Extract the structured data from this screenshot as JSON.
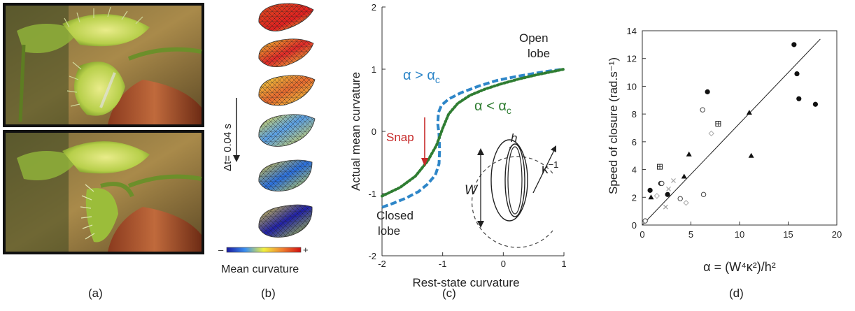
{
  "captions": {
    "a": "(a)",
    "b": "(b)",
    "c": "(c)",
    "d": "(d)"
  },
  "panel_b": {
    "time_step_label": "Δt= 0.04 s",
    "colorbar_label": "Mean curvature",
    "colorbar_min": "–",
    "colorbar_max": "+"
  },
  "panel_c": {
    "open_lobe": [
      "Open",
      "lobe"
    ],
    "closed_lobe": [
      "Closed",
      "lobe"
    ],
    "snap": "Snap",
    "alpha_gt": "α > α",
    "alpha_lt": "α < α",
    "alpha_sub": "c",
    "inset_h": "h",
    "inset_w": "W",
    "inset_kappa": "κ",
    "inset_kappa_sup": "−1",
    "colors": {
      "alpha_gt": "#2e86c8",
      "alpha_lt": "#2f7d32",
      "snap": "#c62828"
    }
  },
  "chart_data": [
    {
      "type": "line",
      "xlabel": "Rest-state curvature",
      "ylabel": "Actual mean curvature",
      "xlim": [
        -2,
        1
      ],
      "ylim": [
        -2,
        2
      ],
      "xticks": [
        -2,
        -1,
        0,
        1
      ],
      "yticks": [
        -2,
        -1,
        0,
        1,
        2
      ],
      "series": [
        {
          "name": "α > αc",
          "style": "dashed",
          "color": "#2e86c8",
          "points": [
            [
              -2,
              -1.22
            ],
            [
              -1.8,
              -1.15
            ],
            [
              -1.6,
              -1.07
            ],
            [
              -1.4,
              -0.97
            ],
            [
              -1.25,
              -0.85
            ],
            [
              -1.12,
              -0.7
            ],
            [
              -1.06,
              -0.52
            ],
            [
              -1.05,
              -0.3
            ],
            [
              -1.06,
              -0.05
            ],
            [
              -1.08,
              0.12
            ],
            [
              -1.07,
              0.3
            ],
            [
              -1.02,
              0.42
            ],
            [
              -0.9,
              0.52
            ],
            [
              -0.7,
              0.62
            ],
            [
              -0.4,
              0.73
            ],
            [
              -0.1,
              0.82
            ],
            [
              0.2,
              0.88
            ],
            [
              0.5,
              0.93
            ],
            [
              0.75,
              0.97
            ],
            [
              1,
              1.0
            ]
          ]
        },
        {
          "name": "α < αc",
          "style": "dotted",
          "color": "#2f7d32",
          "points": [
            [
              -2,
              -1.04
            ],
            [
              -1.7,
              -0.9
            ],
            [
              -1.45,
              -0.72
            ],
            [
              -1.25,
              -0.48
            ],
            [
              -1.1,
              -0.22
            ],
            [
              -1.0,
              0.05
            ],
            [
              -0.9,
              0.28
            ],
            [
              -0.75,
              0.45
            ],
            [
              -0.55,
              0.58
            ],
            [
              -0.3,
              0.68
            ],
            [
              -0.05,
              0.76
            ],
            [
              0.25,
              0.84
            ],
            [
              0.55,
              0.91
            ],
            [
              0.8,
              0.96
            ],
            [
              1,
              1.0
            ]
          ]
        }
      ]
    },
    {
      "type": "scatter",
      "xlabel": "α = (W⁴κ²)/h²",
      "ylabel": "Speed of closure (rad.s⁻¹)",
      "xlim": [
        0,
        20
      ],
      "ylim": [
        0,
        14
      ],
      "xticks": [
        0,
        5,
        10,
        15,
        20
      ],
      "yticks": [
        0,
        2,
        4,
        6,
        8,
        10,
        12,
        14
      ],
      "fit_line": [
        [
          0,
          0
        ],
        [
          18.3,
          13.4
        ]
      ],
      "points": [
        {
          "x": 15.6,
          "y": 13.0,
          "m": "dot"
        },
        {
          "x": 15.9,
          "y": 10.9,
          "m": "dot"
        },
        {
          "x": 16.1,
          "y": 9.1,
          "m": "dot"
        },
        {
          "x": 17.8,
          "y": 8.7,
          "m": "dot"
        },
        {
          "x": 6.7,
          "y": 9.6,
          "m": "dot"
        },
        {
          "x": 0.8,
          "y": 2.5,
          "m": "dot"
        },
        {
          "x": 2.6,
          "y": 2.2,
          "m": "dot"
        },
        {
          "x": 1.9,
          "y": 3.0,
          "m": "dot"
        },
        {
          "x": 11.0,
          "y": 8.1,
          "m": "tri"
        },
        {
          "x": 11.2,
          "y": 5.0,
          "m": "tri"
        },
        {
          "x": 4.8,
          "y": 5.1,
          "m": "tri"
        },
        {
          "x": 4.3,
          "y": 3.5,
          "m": "tri"
        },
        {
          "x": 0.9,
          "y": 2.0,
          "m": "tri"
        },
        {
          "x": 6.2,
          "y": 8.3,
          "m": "circ"
        },
        {
          "x": 2.0,
          "y": 3.0,
          "m": "circ"
        },
        {
          "x": 3.9,
          "y": 1.9,
          "m": "circ"
        },
        {
          "x": 6.3,
          "y": 2.2,
          "m": "circ"
        },
        {
          "x": 0.3,
          "y": 0.3,
          "m": "circ"
        },
        {
          "x": 7.8,
          "y": 7.3,
          "m": "sq"
        },
        {
          "x": 1.8,
          "y": 4.2,
          "m": "sq"
        },
        {
          "x": 3.2,
          "y": 3.2,
          "m": "cross"
        },
        {
          "x": 2.7,
          "y": 2.6,
          "m": "cross"
        },
        {
          "x": 2.4,
          "y": 1.3,
          "m": "cross"
        },
        {
          "x": 7.1,
          "y": 6.6,
          "m": "diam"
        },
        {
          "x": 4.5,
          "y": 1.6,
          "m": "diam"
        },
        {
          "x": 1.5,
          "y": 2.1,
          "m": "diam"
        }
      ]
    }
  ]
}
